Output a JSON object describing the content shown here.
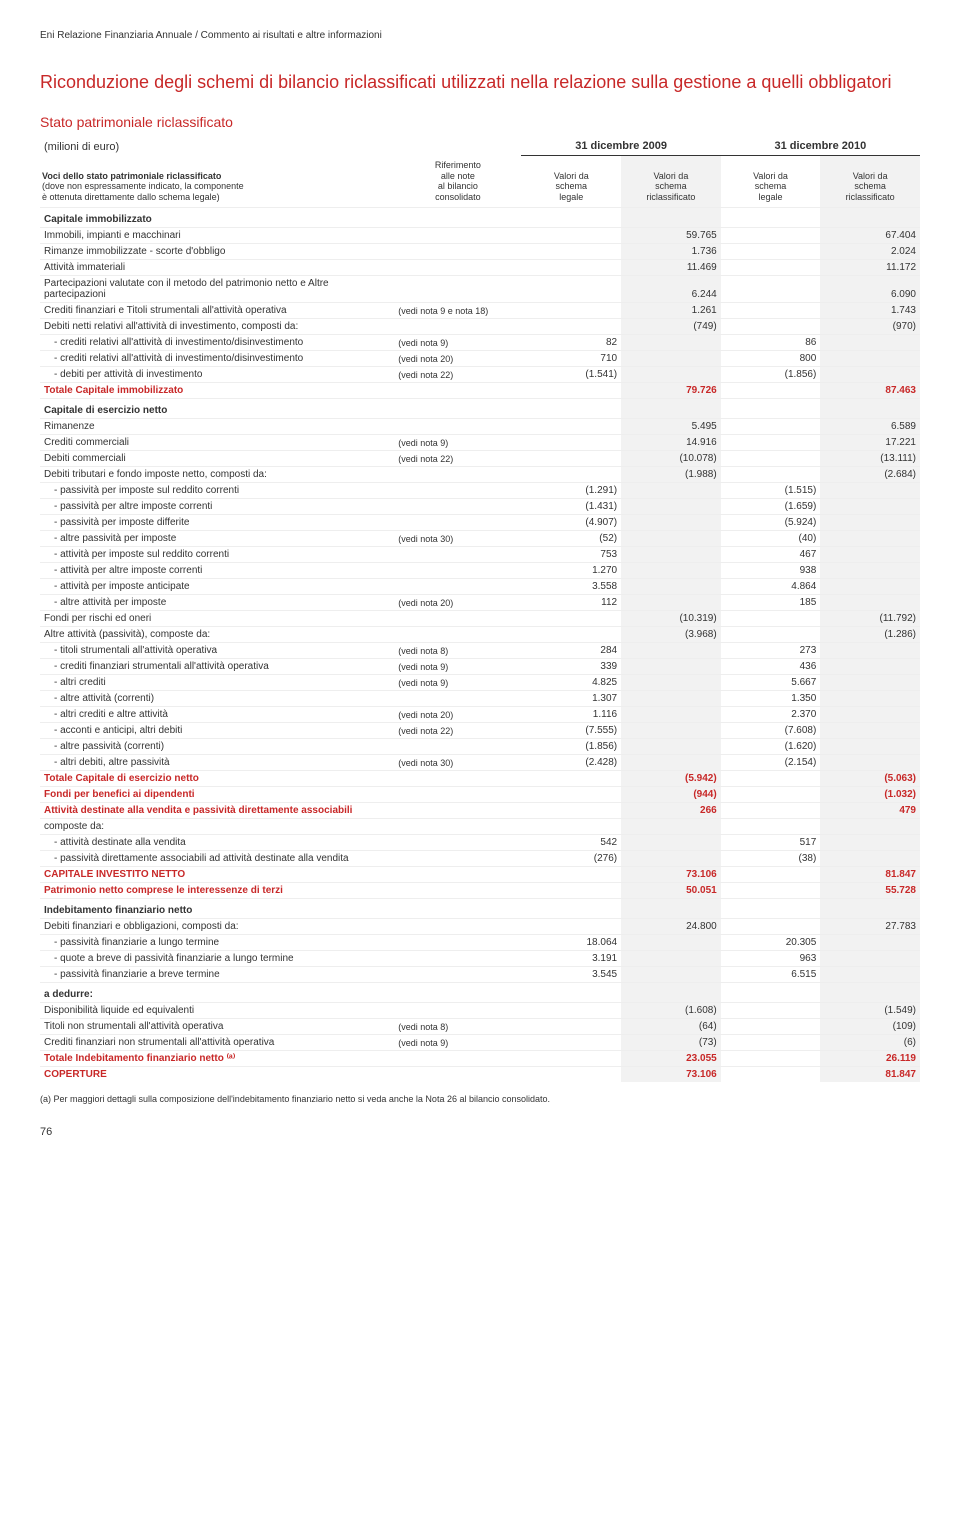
{
  "header": "Eni Relazione Finanziaria Annuale / Commento ai risultati e altre informazioni",
  "title": "Riconduzione degli schemi di bilancio riclassificati utilizzati nella relazione sulla gestione a quelli obbligatori",
  "section": "Stato patrimoniale riclassificato",
  "unit": "(milioni di euro)",
  "year1": "31 dicembre 2009",
  "year2": "31 dicembre 2010",
  "voci_label": "Voci dello stato patrimoniale riclassificato",
  "voci_sub1": "(dove non espressamente indicato, la componente",
  "voci_sub2": "è ottenuta direttamente dallo schema legale)",
  "col_labels": {
    "rif": "Riferimento\nalle note\nal bilancio\nconsolidato",
    "v1": "Valori da\nschema\nlegale",
    "v2": "Valori da\nschema\nriclassificato",
    "v3": "Valori da\nschema\nlegale",
    "v4": "Valori da\nschema\nriclassificato"
  },
  "rows": [
    {
      "t": "hdr",
      "d": "Capitale immobilizzato"
    },
    {
      "d": "Immobili, impianti e macchinari",
      "v2": "59.765",
      "v4": "67.404"
    },
    {
      "d": "Rimanze immobilizzate - scorte d'obbligo",
      "v2": "1.736",
      "v4": "2.024"
    },
    {
      "d": "Attività immateriali",
      "v2": "11.469",
      "v4": "11.172"
    },
    {
      "d": "Partecipazioni valutate con il metodo del patrimonio netto e Altre partecipazioni",
      "v2": "6.244",
      "v4": "6.090"
    },
    {
      "d": "Crediti finanziari e Titoli strumentali all'attività operativa",
      "n": "(vedi nota 9 e nota 18)",
      "v2": "1.261",
      "v4": "1.743"
    },
    {
      "d": "Debiti netti relativi all'attività di investimento, composti da:",
      "v2": "(749)",
      "v4": "(970)"
    },
    {
      "i": 1,
      "d": "- crediti relativi all'attività di investimento/disinvestimento",
      "n": "(vedi nota 9)",
      "v1": "82",
      "v3": "86"
    },
    {
      "i": 1,
      "d": "- crediti relativi all'attività di investimento/disinvestimento",
      "n": "(vedi nota 20)",
      "v1": "710",
      "v3": "800"
    },
    {
      "i": 1,
      "d": "- debiti per attività di investimento",
      "n": "(vedi nota 22)",
      "v1": "(1.541)",
      "v3": "(1.856)"
    },
    {
      "t": "red",
      "d": "Totale Capitale immobilizzato",
      "v2": "79.726",
      "v4": "87.463"
    },
    {
      "t": "hdr",
      "d": "Capitale di esercizio netto"
    },
    {
      "d": "Rimanenze",
      "v2": "5.495",
      "v4": "6.589"
    },
    {
      "d": "Crediti commerciali",
      "n": "(vedi nota 9)",
      "v2": "14.916",
      "v4": "17.221"
    },
    {
      "d": "Debiti commerciali",
      "n": "(vedi nota 22)",
      "v2": "(10.078)",
      "v4": "(13.111)"
    },
    {
      "d": "Debiti tributari e fondo imposte netto, composti da:",
      "v2": "(1.988)",
      "v4": "(2.684)"
    },
    {
      "i": 1,
      "d": "- passività per imposte sul reddito correnti",
      "v1": "(1.291)",
      "v3": "(1.515)"
    },
    {
      "i": 1,
      "d": "- passività per altre imposte correnti",
      "v1": "(1.431)",
      "v3": "(1.659)"
    },
    {
      "i": 1,
      "d": "- passività per imposte differite",
      "v1": "(4.907)",
      "v3": "(5.924)"
    },
    {
      "i": 1,
      "d": "- altre passività per imposte",
      "n": "(vedi nota 30)",
      "v1": "(52)",
      "v3": "(40)"
    },
    {
      "i": 1,
      "d": "- attività per imposte sul reddito correnti",
      "v1": "753",
      "v3": "467"
    },
    {
      "i": 1,
      "d": "- attività per altre imposte correnti",
      "v1": "1.270",
      "v3": "938"
    },
    {
      "i": 1,
      "d": "- attività per imposte anticipate",
      "v1": "3.558",
      "v3": "4.864"
    },
    {
      "i": 1,
      "d": "- altre attività per imposte",
      "n": "(vedi nota 20)",
      "v1": "112",
      "v3": "185"
    },
    {
      "d": "Fondi per rischi ed oneri",
      "v2": "(10.319)",
      "v4": "(11.792)"
    },
    {
      "d": "Altre attività (passività), composte da:",
      "v2": "(3.968)",
      "v4": "(1.286)"
    },
    {
      "i": 1,
      "d": "- titoli strumentali all'attività operativa",
      "n": "(vedi nota 8)",
      "v1": "284",
      "v3": "273"
    },
    {
      "i": 1,
      "d": "- crediti finanziari strumentali all'attività operativa",
      "n": "(vedi nota 9)",
      "v1": "339",
      "v3": "436"
    },
    {
      "i": 1,
      "d": "- altri crediti",
      "n": "(vedi nota 9)",
      "v1": "4.825",
      "v3": "5.667"
    },
    {
      "i": 1,
      "d": "- altre attività (correnti)",
      "v1": "1.307",
      "v3": "1.350"
    },
    {
      "i": 1,
      "d": "- altri crediti e altre attività",
      "n": "(vedi nota 20)",
      "v1": "1.116",
      "v3": "2.370"
    },
    {
      "i": 1,
      "d": "- acconti e anticipi, altri debiti",
      "n": "(vedi nota 22)",
      "v1": "(7.555)",
      "v3": "(7.608)"
    },
    {
      "i": 1,
      "d": "- altre passività (correnti)",
      "v1": "(1.856)",
      "v3": "(1.620)"
    },
    {
      "i": 1,
      "d": "- altri debiti, altre passività",
      "n": "(vedi nota 30)",
      "v1": "(2.428)",
      "v3": "(2.154)"
    },
    {
      "t": "red",
      "d": "Totale Capitale di esercizio netto",
      "v2": "(5.942)",
      "v4": "(5.063)"
    },
    {
      "t": "red",
      "d": "Fondi per benefici ai dipendenti",
      "v2": "(944)",
      "v4": "(1.032)"
    },
    {
      "t": "red",
      "d": "Attività destinate alla vendita e passività direttamente associabili",
      "v2": "266",
      "v4": "479"
    },
    {
      "d": "composte da:"
    },
    {
      "i": 1,
      "d": "- attività destinate alla vendita",
      "v1": "542",
      "v3": "517"
    },
    {
      "i": 1,
      "d": "- passività direttamente associabili ad attività destinate alla vendita",
      "v1": "(276)",
      "v3": "(38)"
    },
    {
      "t": "redcaps",
      "d": "CAPITALE INVESTITO NETTO",
      "v2": "73.106",
      "v4": "81.847"
    },
    {
      "t": "red",
      "d": "Patrimonio netto comprese le interessenze di terzi",
      "v2": "50.051",
      "v4": "55.728"
    },
    {
      "t": "hdr",
      "d": "Indebitamento finanziario netto"
    },
    {
      "d": "Debiti finanziari e obbligazioni, composti da:",
      "v2": "24.800",
      "v4": "27.783"
    },
    {
      "i": 1,
      "d": "- passività finanziarie a lungo termine",
      "v1": "18.064",
      "v3": "20.305"
    },
    {
      "i": 1,
      "d": "- quote a breve di passività finanziarie a lungo termine",
      "v1": "3.191",
      "v3": "963"
    },
    {
      "i": 1,
      "d": "- passività finanziarie a breve termine",
      "v1": "3.545",
      "v3": "6.515"
    },
    {
      "t": "hdr",
      "d": "a dedurre:"
    },
    {
      "d": "Disponibilità liquide ed equivalenti",
      "v2": "(1.608)",
      "v4": "(1.549)"
    },
    {
      "d": "Titoli non strumentali all'attività operativa",
      "n": "(vedi nota 8)",
      "v2": "(64)",
      "v4": "(109)"
    },
    {
      "d": "Crediti finanziari non strumentali all'attività operativa",
      "n": "(vedi nota 9)",
      "v2": "(73)",
      "v4": "(6)"
    },
    {
      "t": "red",
      "d": "Totale Indebitamento finanziario netto ⁽ᵃ⁾",
      "v2": "23.055",
      "v4": "26.119"
    },
    {
      "t": "redcaps",
      "d": "COPERTURE",
      "v2": "73.106",
      "v4": "81.847"
    }
  ],
  "footnote": "(a) Per maggiori dettagli sulla composizione dell'indebitamento finanziario netto si veda anche la Nota 26 al bilancio consolidato.",
  "pagenum": "76"
}
